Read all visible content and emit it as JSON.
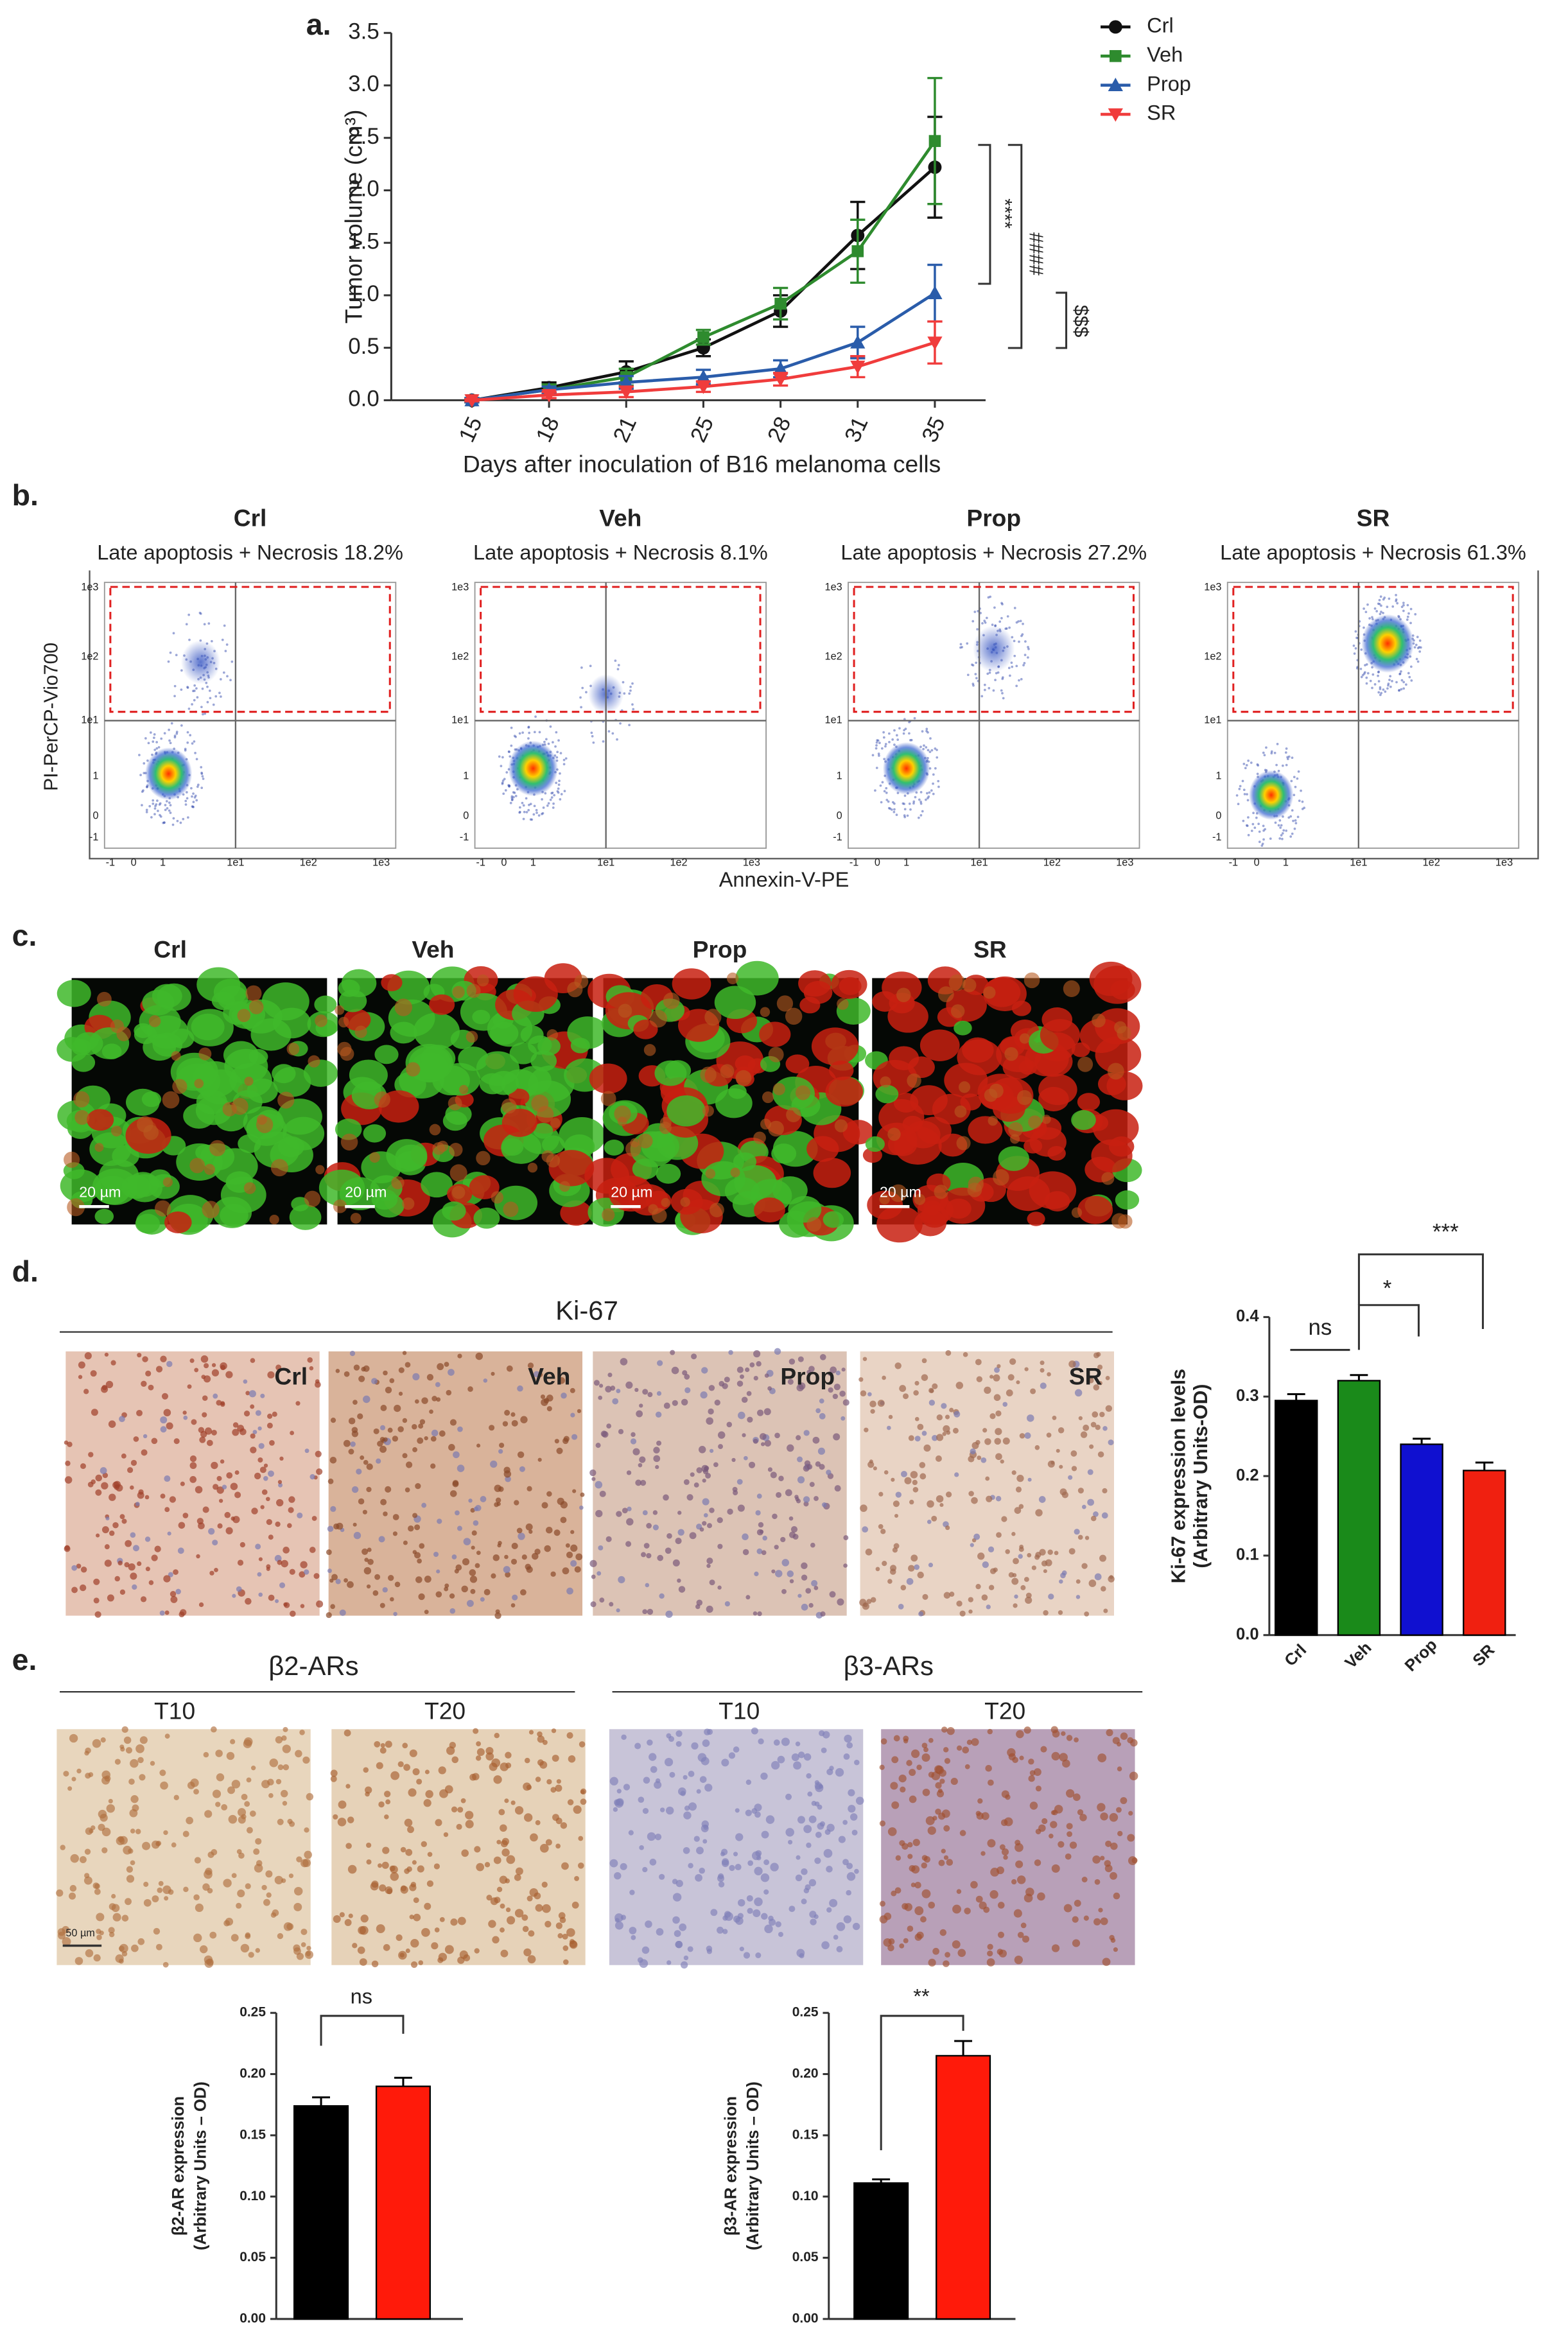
{
  "panel_labels": [
    "a.",
    "b.",
    "c.",
    "d.",
    "e."
  ],
  "flow": {
    "y_label": "PI-PerCP-Vio700",
    "x_label": "Annexin-V-PE",
    "axis_tick_labels": [
      "-1",
      "0",
      "1",
      "1e1",
      "1e2",
      "1e3"
    ],
    "plots": [
      {
        "title": "Crl",
        "subtitle": "Late apoptosis + Necrosis 18.2%"
      },
      {
        "title": "Veh",
        "subtitle": "Late apoptosis + Necrosis 8.1%"
      },
      {
        "title": "Prop",
        "subtitle": "Late apoptosis + Necrosis 27.2%"
      },
      {
        "title": "SR",
        "subtitle": "Late apoptosis + Necrosis 61.3%"
      }
    ]
  },
  "microscopy": {
    "labels": [
      "Crl",
      "Veh",
      "Prop",
      "SR"
    ],
    "scale_bar": "20 µm"
  },
  "ihc": {
    "title": "Ki-67",
    "labels": [
      "Crl",
      "Veh",
      "Prop",
      "SR"
    ]
  },
  "receptors": {
    "groups": [
      "β2-ARs",
      "β3-ARs"
    ],
    "labels": [
      "T10",
      "T20",
      "T10",
      "T20"
    ],
    "scale_bar": "50 µm"
  },
  "chart_data": [
    {
      "type": "line",
      "y_label": "Tumor volume (cm³)",
      "x_label": "Days after inoculation of B16 melanoma cells",
      "categories": [
        "15",
        "18",
        "21",
        "25",
        "28",
        "31",
        "35"
      ],
      "series": [
        {
          "name": "Crl",
          "color": "#111111",
          "marker": "circle",
          "values": [
            0,
            0.12,
            0.27,
            0.5,
            0.85,
            1.57,
            2.22
          ],
          "errors": [
            0.02,
            0.05,
            0.1,
            0.08,
            0.15,
            0.32,
            0.48
          ]
        },
        {
          "name": "Veh",
          "color": "#2e8b2e",
          "marker": "square",
          "values": [
            0,
            0.1,
            0.22,
            0.6,
            0.92,
            1.42,
            2.47
          ],
          "errors": [
            0.02,
            0.05,
            0.08,
            0.07,
            0.15,
            0.3,
            0.6
          ]
        },
        {
          "name": "Prop",
          "color": "#2a5caa",
          "marker": "triangle",
          "values": [
            0,
            0.1,
            0.17,
            0.22,
            0.3,
            0.55,
            1.02
          ],
          "errors": [
            0.02,
            0.03,
            0.06,
            0.07,
            0.08,
            0.15,
            0.27
          ]
        },
        {
          "name": "SR",
          "color": "#f03c3c",
          "marker": "triangle-down",
          "values": [
            0,
            0.05,
            0.08,
            0.13,
            0.2,
            0.32,
            0.55
          ],
          "errors": [
            0.01,
            0.03,
            0.05,
            0.05,
            0.06,
            0.1,
            0.2
          ]
        }
      ],
      "ylim": [
        0,
        3.5
      ],
      "yticks": [
        {
          "value": 0,
          "label": "0.0"
        },
        0.5,
        {
          "value": 1,
          "label": "1.0"
        },
        1.5,
        {
          "value": 2,
          "label": "2.0"
        },
        2.5,
        {
          "value": 3,
          "label": "3.0"
        },
        3.5
      ],
      "annotations": [
        "****",
        "####",
        "$$$"
      ]
    },
    {
      "type": "bar",
      "y_label": [
        "Ki-67 expression levels",
        "(Arbitrary Units-OD)"
      ],
      "categories": [
        "Crl",
        "Veh",
        "Prop",
        "SR"
      ],
      "values": [
        0.295,
        0.32,
        0.24,
        0.207
      ],
      "errors": [
        0.008,
        0.007,
        0.007,
        0.01
      ],
      "colors": [
        "#000000",
        "#1a8a1a",
        "#1010d0",
        "#f02010"
      ],
      "ylim": [
        0,
        0.4
      ],
      "yticks": [
        {
          "value": 0,
          "label": "0.0"
        },
        0.1,
        0.2,
        0.3,
        0.4
      ],
      "annotations": [
        "ns",
        "*",
        "***"
      ]
    },
    {
      "type": "bar",
      "y_label": [
        "β2-AR expression",
        "(Arbitrary Units – OD)"
      ],
      "categories": [
        "T10",
        "T20"
      ],
      "values": [
        0.174,
        0.19
      ],
      "errors": [
        0.007,
        0.007
      ],
      "colors": [
        "#000000",
        "#ff1a0a"
      ],
      "ylim": [
        0,
        0.25
      ],
      "yticks": [
        {
          "value": 0,
          "label": "0.00"
        },
        {
          "value": 0.05,
          "label": "0.05"
        },
        {
          "value": 0.1,
          "label": "0.10"
        },
        {
          "value": 0.15,
          "label": "0.15"
        },
        {
          "value": 0.2,
          "label": "0.20"
        },
        {
          "value": 0.25,
          "label": "0.25"
        }
      ],
      "annotations": [
        "ns"
      ]
    },
    {
      "type": "bar",
      "y_label": [
        "β3-AR expression",
        "(Arbitrary Units – OD)"
      ],
      "categories": [
        "T10",
        "T20"
      ],
      "values": [
        0.111,
        0.215
      ],
      "errors": [
        0.003,
        0.012
      ],
      "colors": [
        "#000000",
        "#ff1a0a"
      ],
      "ylim": [
        0,
        0.25
      ],
      "yticks": [
        {
          "value": 0,
          "label": "0.00"
        },
        {
          "value": 0.05,
          "label": "0.05"
        },
        {
          "value": 0.1,
          "label": "0.10"
        },
        {
          "value": 0.15,
          "label": "0.15"
        },
        {
          "value": 0.2,
          "label": "0.20"
        },
        {
          "value": 0.25,
          "label": "0.25"
        }
      ],
      "annotations": [
        "**"
      ]
    }
  ]
}
